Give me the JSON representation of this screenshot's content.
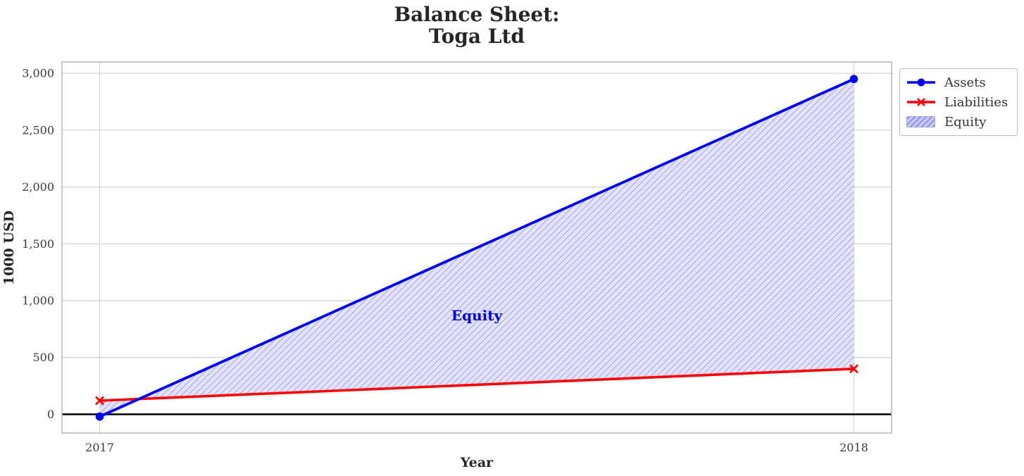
{
  "chart_data": {
    "type": "line",
    "title": "Balance Sheet:\nToga Ltd",
    "title_lines": [
      "Balance Sheet:",
      "Toga Ltd"
    ],
    "xlabel": "Year",
    "ylabel": "1000 USD",
    "x": [
      2017,
      2018
    ],
    "series": [
      {
        "name": "Assets",
        "values": [
          -20,
          2950
        ],
        "color": "#0000ff",
        "marker": "circle",
        "line_width": 3.8
      },
      {
        "name": "Liabilities",
        "values": [
          120,
          400
        ],
        "color": "#ff0000",
        "marker": "x",
        "line_width": 3.6
      }
    ],
    "equity_fill": {
      "label": "Equity",
      "between": [
        "Assets",
        "Liabilities"
      ],
      "face_color": "#e4e4fb",
      "hatch_color": "#b9b9ef",
      "hatch": "//"
    },
    "annotation": {
      "text": "Equity",
      "x": 2017.5,
      "y": 870,
      "color": "#0000e6"
    },
    "xlim": [
      2016.95,
      2018.05
    ],
    "ylim": [
      -165,
      3100
    ],
    "xticks": [
      {
        "value": 2017,
        "label": "2017"
      },
      {
        "value": 2018,
        "label": "2018"
      }
    ],
    "yticks": [
      {
        "value": 0,
        "label": "0"
      },
      {
        "value": 500,
        "label": "500"
      },
      {
        "value": 1000,
        "label": "1,000"
      },
      {
        "value": 1500,
        "label": "1,500"
      },
      {
        "value": 2000,
        "label": "2,000"
      },
      {
        "value": 2500,
        "label": "2,500"
      },
      {
        "value": 3000,
        "label": "3,000"
      }
    ],
    "grid": true,
    "zero_line": {
      "y": 0,
      "color": "#000000"
    },
    "legend": {
      "position": "outside-top-right",
      "entries": [
        "Assets",
        "Liabilities",
        "Equity"
      ]
    }
  },
  "style": {
    "grid_color": "#d6d6d6",
    "frame_color": "#b5b5b5",
    "tick_label_color": "#3b3b3b",
    "text_color": "#262626"
  }
}
